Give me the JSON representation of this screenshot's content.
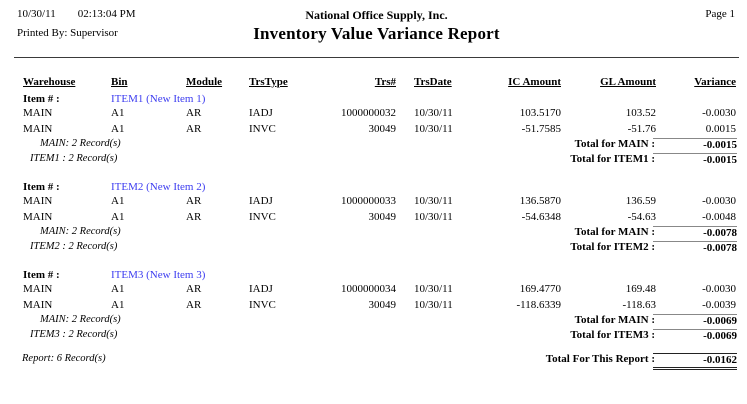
{
  "header": {
    "date": "10/30/11",
    "time": "02:13:04 PM",
    "printed_by": "Printed By: Supervisor",
    "company": "National Office Supply, Inc.",
    "title": "Inventory Value Variance Report",
    "page": "Page 1"
  },
  "table": {
    "item_label": "Item # :",
    "columns": {
      "warehouse": "Warehouse",
      "bin": "Bin",
      "module": "Module",
      "trstype": "TrsType",
      "trsnum": "Trs#",
      "trsdate": "TrsDate",
      "ic_amount": "IC Amount",
      "gl_amount": "GL Amount",
      "variance": "Variance"
    },
    "groups": [
      {
        "item": "ITEM1 (New Item 1)",
        "rows": [
          {
            "warehouse": "MAIN",
            "bin": "A1",
            "module": "AR",
            "trstype": "IADJ",
            "trsnum": "1000000032",
            "trsdate": "10/30/11",
            "ic": "103.5170",
            "gl": "103.52",
            "variance": "-0.0030"
          },
          {
            "warehouse": "MAIN",
            "bin": "A1",
            "module": "AR",
            "trstype": "INVC",
            "trsnum": "30049",
            "trsdate": "10/30/11",
            "ic": "-51.7585",
            "gl": "-51.76",
            "variance": "0.0015"
          }
        ],
        "wh_count": "MAIN: 2 Record(s)",
        "wh_total_label": "Total for MAIN :",
        "wh_total": "-0.0015",
        "item_count": "ITEM1 : 2 Record(s)",
        "item_total_label": "Total for ITEM1 :",
        "item_total": "-0.0015"
      },
      {
        "item": "ITEM2 (New Item 2)",
        "rows": [
          {
            "warehouse": "MAIN",
            "bin": "A1",
            "module": "AR",
            "trstype": "IADJ",
            "trsnum": "1000000033",
            "trsdate": "10/30/11",
            "ic": "136.5870",
            "gl": "136.59",
            "variance": "-0.0030"
          },
          {
            "warehouse": "MAIN",
            "bin": "A1",
            "module": "AR",
            "trstype": "INVC",
            "trsnum": "30049",
            "trsdate": "10/30/11",
            "ic": "-54.6348",
            "gl": "-54.63",
            "variance": "-0.0048"
          }
        ],
        "wh_count": "MAIN: 2 Record(s)",
        "wh_total_label": "Total for MAIN :",
        "wh_total": "-0.0078",
        "item_count": "ITEM2 : 2 Record(s)",
        "item_total_label": "Total for ITEM2 :",
        "item_total": "-0.0078"
      },
      {
        "item": "ITEM3 (New Item 3)",
        "rows": [
          {
            "warehouse": "MAIN",
            "bin": "A1",
            "module": "AR",
            "trstype": "IADJ",
            "trsnum": "1000000034",
            "trsdate": "10/30/11",
            "ic": "169.4770",
            "gl": "169.48",
            "variance": "-0.0030"
          },
          {
            "warehouse": "MAIN",
            "bin": "A1",
            "module": "AR",
            "trstype": "INVC",
            "trsnum": "30049",
            "trsdate": "10/30/11",
            "ic": "-118.6339",
            "gl": "-118.63",
            "variance": "-0.0039"
          }
        ],
        "wh_count": "MAIN: 2 Record(s)",
        "wh_total_label": "Total for MAIN :",
        "wh_total": "-0.0069",
        "item_count": "ITEM3 : 2 Record(s)",
        "item_total_label": "Total for ITEM3 :",
        "item_total": "-0.0069"
      }
    ],
    "report_count": "Report: 6 Record(s)",
    "report_total_label": "Total For This Report :",
    "report_total": "-0.0162"
  },
  "colors": {
    "item_link": "#3c3cf0",
    "rule": "#3a3a3a",
    "total_line": "#888888"
  }
}
